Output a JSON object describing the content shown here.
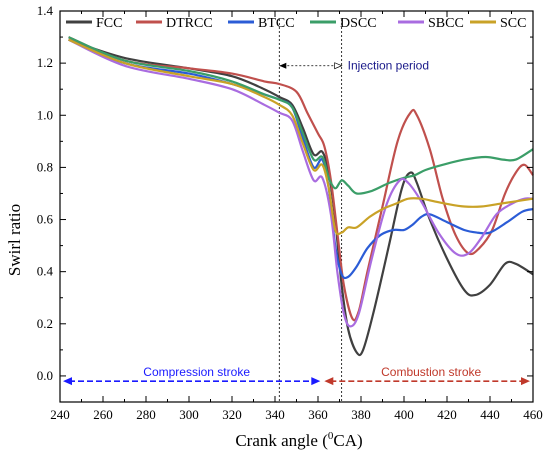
{
  "chart_data": {
    "type": "line",
    "xlabel": "Crank angle (",
    "xlabel_sup": "0",
    "xlabel_tail": "CA)",
    "ylabel": "Swirl ratio",
    "xlim": [
      240,
      460
    ],
    "ylim": [
      -0.1,
      1.4
    ],
    "xticks": [
      "240",
      "260",
      "280",
      "300",
      "320",
      "340",
      "360",
      "380",
      "400",
      "420",
      "440",
      "460"
    ],
    "yticks": [
      "0.0",
      "0.2",
      "0.4",
      "0.6",
      "0.8",
      "1.0",
      "1.2",
      "1.4"
    ],
    "grid": false,
    "legend_placement": "top",
    "series": [
      {
        "name": "FCC",
        "color": "#404040",
        "points": [
          [
            244,
            1.29
          ],
          [
            270,
            1.22
          ],
          [
            300,
            1.18
          ],
          [
            320,
            1.15
          ],
          [
            335,
            1.1
          ],
          [
            342,
            1.07
          ],
          [
            348,
            1.04
          ],
          [
            353,
            0.95
          ],
          [
            358,
            0.85
          ],
          [
            362,
            0.86
          ],
          [
            365,
            0.78
          ],
          [
            368,
            0.6
          ],
          [
            371,
            0.35
          ],
          [
            374,
            0.18
          ],
          [
            378,
            0.09
          ],
          [
            381,
            0.1
          ],
          [
            386,
            0.25
          ],
          [
            393,
            0.5
          ],
          [
            399,
            0.72
          ],
          [
            403,
            0.78
          ],
          [
            406,
            0.74
          ],
          [
            412,
            0.6
          ],
          [
            420,
            0.45
          ],
          [
            428,
            0.33
          ],
          [
            433,
            0.31
          ],
          [
            440,
            0.35
          ],
          [
            447,
            0.43
          ],
          [
            452,
            0.43
          ],
          [
            460,
            0.39
          ]
        ]
      },
      {
        "name": "DTRCC",
        "color": "#c0504d",
        "points": [
          [
            244,
            1.3
          ],
          [
            270,
            1.21
          ],
          [
            300,
            1.18
          ],
          [
            320,
            1.16
          ],
          [
            335,
            1.13
          ],
          [
            342,
            1.12
          ],
          [
            350,
            1.09
          ],
          [
            355,
            1.01
          ],
          [
            360,
            0.93
          ],
          [
            363,
            0.88
          ],
          [
            366,
            0.75
          ],
          [
            369,
            0.55
          ],
          [
            372,
            0.35
          ],
          [
            376,
            0.22
          ],
          [
            379,
            0.25
          ],
          [
            383,
            0.4
          ],
          [
            390,
            0.65
          ],
          [
            397,
            0.9
          ],
          [
            403,
            1.01
          ],
          [
            406,
            1.0
          ],
          [
            412,
            0.87
          ],
          [
            418,
            0.68
          ],
          [
            424,
            0.54
          ],
          [
            430,
            0.47
          ],
          [
            435,
            0.49
          ],
          [
            441,
            0.56
          ],
          [
            447,
            0.7
          ],
          [
            452,
            0.78
          ],
          [
            456,
            0.81
          ],
          [
            460,
            0.77
          ]
        ]
      },
      {
        "name": "BTCC",
        "color": "#2b5cd6",
        "points": [
          [
            244,
            1.29
          ],
          [
            270,
            1.2
          ],
          [
            300,
            1.16
          ],
          [
            320,
            1.12
          ],
          [
            335,
            1.08
          ],
          [
            342,
            1.06
          ],
          [
            348,
            1.03
          ],
          [
            353,
            0.91
          ],
          [
            358,
            0.8
          ],
          [
            362,
            0.83
          ],
          [
            365,
            0.72
          ],
          [
            368,
            0.5
          ],
          [
            371,
            0.39
          ],
          [
            374,
            0.38
          ],
          [
            378,
            0.42
          ],
          [
            383,
            0.49
          ],
          [
            389,
            0.54
          ],
          [
            395,
            0.56
          ],
          [
            400,
            0.56
          ],
          [
            404,
            0.58
          ],
          [
            408,
            0.61
          ],
          [
            412,
            0.62
          ],
          [
            420,
            0.59
          ],
          [
            428,
            0.56
          ],
          [
            434,
            0.55
          ],
          [
            440,
            0.55
          ],
          [
            448,
            0.59
          ],
          [
            455,
            0.63
          ],
          [
            460,
            0.64
          ]
        ]
      },
      {
        "name": "DSCC",
        "color": "#3b9e68",
        "points": [
          [
            244,
            1.3
          ],
          [
            270,
            1.21
          ],
          [
            300,
            1.17
          ],
          [
            320,
            1.13
          ],
          [
            335,
            1.08
          ],
          [
            342,
            1.06
          ],
          [
            348,
            1.03
          ],
          [
            353,
            0.93
          ],
          [
            358,
            0.83
          ],
          [
            362,
            0.84
          ],
          [
            365,
            0.76
          ],
          [
            368,
            0.72
          ],
          [
            371,
            0.75
          ],
          [
            374,
            0.73
          ],
          [
            378,
            0.7
          ],
          [
            385,
            0.71
          ],
          [
            393,
            0.74
          ],
          [
            400,
            0.76
          ],
          [
            405,
            0.77
          ],
          [
            410,
            0.79
          ],
          [
            418,
            0.81
          ],
          [
            428,
            0.83
          ],
          [
            438,
            0.84
          ],
          [
            446,
            0.83
          ],
          [
            452,
            0.83
          ],
          [
            460,
            0.87
          ]
        ]
      },
      {
        "name": "SBCC",
        "color": "#a96ce0",
        "points": [
          [
            244,
            1.29
          ],
          [
            270,
            1.19
          ],
          [
            300,
            1.14
          ],
          [
            320,
            1.1
          ],
          [
            335,
            1.04
          ],
          [
            342,
            1.01
          ],
          [
            348,
            0.98
          ],
          [
            353,
            0.86
          ],
          [
            358,
            0.75
          ],
          [
            362,
            0.76
          ],
          [
            366,
            0.62
          ],
          [
            369,
            0.4
          ],
          [
            372,
            0.24
          ],
          [
            375,
            0.19
          ],
          [
            379,
            0.24
          ],
          [
            385,
            0.45
          ],
          [
            392,
            0.66
          ],
          [
            398,
            0.75
          ],
          [
            402,
            0.74
          ],
          [
            408,
            0.67
          ],
          [
            416,
            0.55
          ],
          [
            424,
            0.47
          ],
          [
            430,
            0.47
          ],
          [
            436,
            0.53
          ],
          [
            443,
            0.62
          ],
          [
            450,
            0.66
          ],
          [
            456,
            0.68
          ],
          [
            460,
            0.68
          ]
        ]
      },
      {
        "name": "SCC",
        "color": "#c9a227",
        "points": [
          [
            244,
            1.29
          ],
          [
            270,
            1.2
          ],
          [
            300,
            1.15
          ],
          [
            320,
            1.12
          ],
          [
            335,
            1.07
          ],
          [
            342,
            1.04
          ],
          [
            348,
            1.0
          ],
          [
            353,
            0.89
          ],
          [
            358,
            0.79
          ],
          [
            362,
            0.81
          ],
          [
            365,
            0.72
          ],
          [
            368,
            0.56
          ],
          [
            371,
            0.55
          ],
          [
            374,
            0.57
          ],
          [
            378,
            0.57
          ],
          [
            384,
            0.61
          ],
          [
            390,
            0.64
          ],
          [
            396,
            0.66
          ],
          [
            402,
            0.68
          ],
          [
            408,
            0.68
          ],
          [
            414,
            0.67
          ],
          [
            420,
            0.66
          ],
          [
            428,
            0.65
          ],
          [
            436,
            0.65
          ],
          [
            444,
            0.66
          ],
          [
            452,
            0.67
          ],
          [
            460,
            0.68
          ]
        ]
      }
    ],
    "annotations": {
      "injection_period": {
        "label": "Injection period",
        "x_start": 342,
        "x_end": 371
      },
      "compression_stroke": {
        "label": "Compression stroke",
        "x_start": 240,
        "x_end": 362,
        "y": -0.02,
        "color": "#1a1aff"
      },
      "combustion_stroke": {
        "label": "Combustion stroke",
        "x_start": 362,
        "x_end": 460,
        "y": -0.02,
        "color": "#c0392b"
      }
    }
  }
}
